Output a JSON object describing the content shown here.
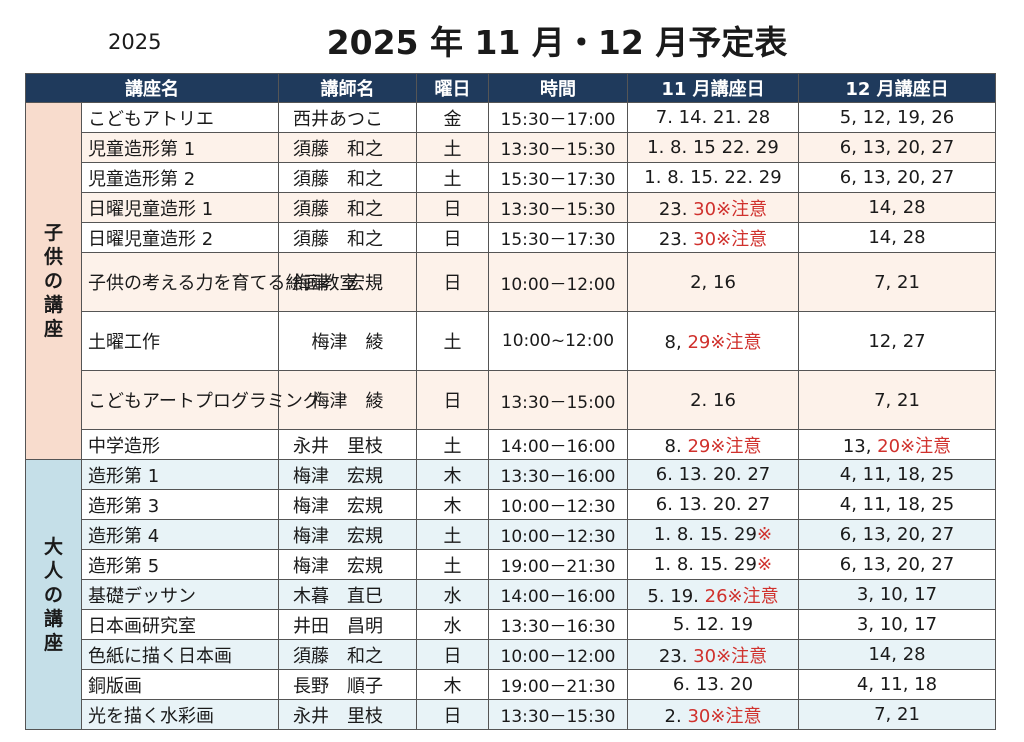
{
  "year_label": "2025",
  "title": "2025 年 11 月・12 月予定表",
  "headers": {
    "course": "講座名",
    "teacher": "講師名",
    "weekday": "曜日",
    "time": "時間",
    "nov": "11 月講座日",
    "dec": "12 月講座日"
  },
  "sections": {
    "children": "子供の講座",
    "adults": "大人の講座"
  },
  "rows": [
    {
      "name": "こどもアトリエ",
      "teacher": "西井あつこ",
      "day": "金",
      "time": "15:30－17:00",
      "nov": "7. 14. 21. 28",
      "nov_note": "",
      "dec": "5, 12, 19, 26",
      "dec_note": ""
    },
    {
      "name": "児童造形第 1",
      "teacher": "須藤　和之",
      "day": "土",
      "time": "13:30－15:30",
      "nov": "1. 8. 15 22. 29",
      "nov_note": "",
      "dec": "6, 13, 20, 27",
      "dec_note": ""
    },
    {
      "name": "児童造形第 2",
      "teacher": "須藤　和之",
      "day": "土",
      "time": "15:30－17:30",
      "nov": "1. 8. 15. 22. 29",
      "nov_note": "",
      "dec": "6, 13, 20, 27",
      "dec_note": ""
    },
    {
      "name": "日曜児童造形 1",
      "teacher": "須藤　和之",
      "day": "日",
      "time": "13:30－15:30",
      "nov": "23. ",
      "nov_note": "30※注意",
      "dec": "14, 28",
      "dec_note": ""
    },
    {
      "name": "日曜児童造形 2",
      "teacher": "須藤　和之",
      "day": "日",
      "time": "15:30－17:30",
      "nov": "23. ",
      "nov_note": "30※注意",
      "dec": "14, 28",
      "dec_note": ""
    },
    {
      "name": "子供の考える力を育てる絵画教室",
      "teacher": "梅津　宏規",
      "day": "日",
      "time": "10:00－12:00",
      "nov": "2, 16",
      "nov_note": "",
      "dec": "7, 21",
      "dec_note": ""
    },
    {
      "name": "土曜工作",
      "teacher": "梅津　綾",
      "day": "土",
      "time": "10:00~12:00",
      "nov": "8, ",
      "nov_note": "29※注意",
      "dec": "12, 27",
      "dec_note": ""
    },
    {
      "name": "こどもアートプログラミング",
      "teacher": "梅津　綾",
      "day": "日",
      "time": "13:30－15:00",
      "nov": "2. 16",
      "nov_note": "",
      "dec": "7, 21",
      "dec_note": ""
    },
    {
      "name": "中学造形",
      "teacher": "永井　里枝",
      "day": "土",
      "time": "14:00－16:00",
      "nov": "8. ",
      "nov_note": "29※注意",
      "dec": "13, ",
      "dec_note": "20※注意"
    },
    {
      "name": "造形第 1",
      "teacher": "梅津　宏規",
      "day": "木",
      "time": "13:30－16:00",
      "nov": "6. 13. 20. 27",
      "nov_note": "",
      "dec": "4, 11, 18, 25",
      "dec_note": ""
    },
    {
      "name": "造形第 3",
      "teacher": "梅津　宏規",
      "day": "木",
      "time": "10:00－12:30",
      "nov": "6. 13. 20. 27",
      "nov_note": "",
      "dec": "4, 11, 18, 25",
      "dec_note": ""
    },
    {
      "name": "造形第 4",
      "teacher": "梅津　宏規",
      "day": "土",
      "time": "10:00－12:30",
      "nov": "1. 8. 15. 29",
      "nov_note": "※",
      "dec": "6, 13, 20, 27",
      "dec_note": ""
    },
    {
      "name": "造形第 5",
      "teacher": "梅津　宏規",
      "day": "土",
      "time": "19:00－21:30",
      "nov": "1. 8. 15. 29",
      "nov_note": "※",
      "dec": "6, 13, 20, 27",
      "dec_note": ""
    },
    {
      "name": "基礎デッサン",
      "teacher": "木暮　直巳",
      "day": "水",
      "time": "14:00－16:00",
      "nov": "5. 19. ",
      "nov_note": "26※注意",
      "dec": "3, 10, 17",
      "dec_note": ""
    },
    {
      "name": "日本画研究室",
      "teacher": "井田　昌明",
      "day": "水",
      "time": "13:30－16:30",
      "nov": "5. 12. 19",
      "nov_note": "",
      "dec": "3, 10, 17",
      "dec_note": ""
    },
    {
      "name": "色紙に描く日本画",
      "teacher": "須藤　和之",
      "day": "日",
      "time": "10:00－12:00",
      "nov": "23. ",
      "nov_note": "30※注意",
      "dec": "14, 28",
      "dec_note": ""
    },
    {
      "name": "銅版画",
      "teacher": "長野　順子",
      "day": "木",
      "time": "19:00－21:30",
      "nov": "6. 13. 20",
      "nov_note": "",
      "dec": "4, 11, 18",
      "dec_note": ""
    },
    {
      "name": "光を描く水彩画",
      "teacher": "永井　里枝",
      "day": "日",
      "time": "13:30－15:30",
      "nov": "2. ",
      "nov_note": "30※注意",
      "dec": "7, 21",
      "dec_note": ""
    }
  ],
  "colors": {
    "header_bg": "#1f3a5c",
    "children_band": "#f8dccd",
    "adults_band": "#c5dfe8",
    "note_red": "#d0312d"
  }
}
